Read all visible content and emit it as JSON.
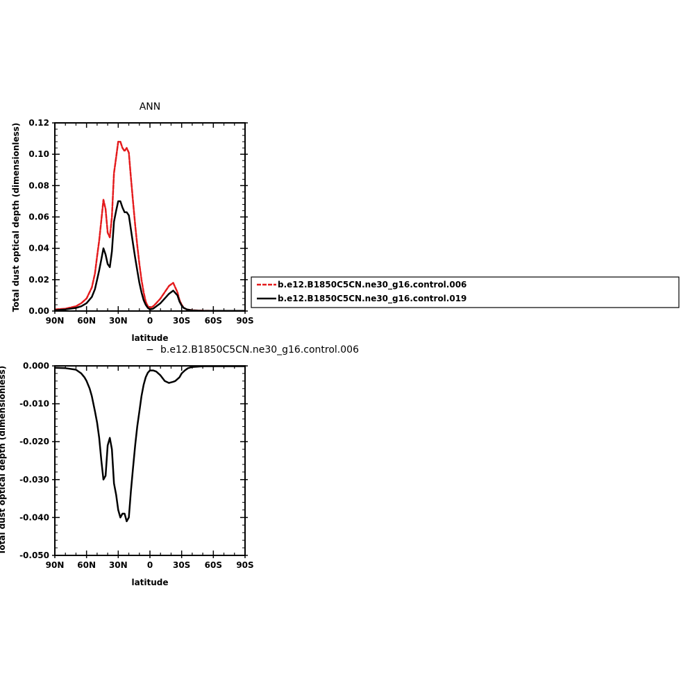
{
  "chart_data": [
    {
      "type": "line",
      "title": "ANN",
      "xlabel": "latitude",
      "ylabel": "Total dust optical depth (dimensionless)",
      "xlim": [
        90,
        -90
      ],
      "ylim": [
        0,
        0.12
      ],
      "x_ticks": [
        90,
        60,
        30,
        0,
        -30,
        -60,
        -90
      ],
      "x_tick_labels": [
        "90N",
        "60N",
        "30N",
        "0",
        "30S",
        "60S",
        "90S"
      ],
      "y_ticks": [
        0,
        0.02,
        0.04,
        0.06,
        0.08,
        0.1,
        0.12
      ],
      "y_tick_labels": [
        "0.00",
        "0.02",
        "0.04",
        "0.06",
        "0.08",
        "0.10",
        "0.12"
      ],
      "grid": false,
      "legend_position": "right",
      "series": [
        {
          "name": "b.e12.B1850C5CN.ne30_g16.control.006",
          "color": "#e41a1c",
          "dashed": true,
          "x": [
            90,
            80,
            70,
            65,
            60,
            55,
            52,
            50,
            48,
            46,
            44,
            42,
            40,
            38,
            36,
            34,
            32,
            30,
            28,
            26,
            24,
            22,
            20,
            18,
            16,
            14,
            12,
            10,
            8,
            6,
            4,
            2,
            0,
            -3,
            -6,
            -10,
            -14,
            -18,
            -22,
            -26,
            -28,
            -30,
            -32,
            -35,
            -40,
            -45,
            -50,
            -60,
            -70,
            -90
          ],
          "y": [
            0.001,
            0.0015,
            0.003,
            0.005,
            0.008,
            0.015,
            0.024,
            0.035,
            0.045,
            0.058,
            0.071,
            0.065,
            0.05,
            0.047,
            0.06,
            0.088,
            0.098,
            0.108,
            0.108,
            0.104,
            0.102,
            0.104,
            0.101,
            0.085,
            0.07,
            0.055,
            0.042,
            0.03,
            0.02,
            0.012,
            0.006,
            0.003,
            0.002,
            0.003,
            0.005,
            0.008,
            0.012,
            0.016,
            0.018,
            0.012,
            0.007,
            0.004,
            0.002,
            0.001,
            0.0005,
            0.0003,
            0.0002,
            0.0001,
            0.0001,
            0.0001
          ]
        },
        {
          "name": "b.e12.B1850C5CN.ne30_g16.control.019",
          "color": "#000000",
          "dashed": false,
          "x": [
            90,
            80,
            70,
            65,
            60,
            55,
            52,
            50,
            48,
            46,
            44,
            42,
            40,
            38,
            36,
            34,
            32,
            30,
            28,
            26,
            24,
            22,
            20,
            18,
            16,
            14,
            12,
            10,
            8,
            6,
            4,
            2,
            0,
            -3,
            -6,
            -10,
            -14,
            -18,
            -22,
            -26,
            -28,
            -30,
            -32,
            -35,
            -40,
            -45,
            -50,
            -60,
            -70,
            -90
          ],
          "y": [
            0.0005,
            0.001,
            0.002,
            0.003,
            0.005,
            0.009,
            0.014,
            0.02,
            0.026,
            0.033,
            0.04,
            0.036,
            0.03,
            0.028,
            0.038,
            0.057,
            0.064,
            0.07,
            0.07,
            0.066,
            0.063,
            0.063,
            0.061,
            0.052,
            0.043,
            0.034,
            0.026,
            0.018,
            0.012,
            0.007,
            0.004,
            0.002,
            0.001,
            0.0015,
            0.003,
            0.005,
            0.008,
            0.011,
            0.013,
            0.01,
            0.006,
            0.0035,
            0.002,
            0.001,
            0.0004,
            0.0002,
            0.0001,
            0.0001,
            0.0001,
            0.0001
          ]
        }
      ]
    },
    {
      "type": "line",
      "title": "b.e12.B1850C5CN.ne30_g16.control.006",
      "title_prefix": "−",
      "xlabel": "latitude",
      "ylabel": "Total dust optical depth (dimensionless)",
      "xlim": [
        90,
        -90
      ],
      "ylim": [
        -0.05,
        0.0
      ],
      "x_ticks": [
        90,
        60,
        30,
        0,
        -30,
        -60,
        -90
      ],
      "x_tick_labels": [
        "90N",
        "60N",
        "30N",
        "0",
        "30S",
        "60S",
        "90S"
      ],
      "y_ticks": [
        0,
        -0.01,
        -0.02,
        -0.03,
        -0.04,
        -0.05
      ],
      "y_tick_labels": [
        "0.000",
        "-0.010",
        "-0.020",
        "-0.030",
        "-0.040",
        "-0.050"
      ],
      "grid": false,
      "series": [
        {
          "color": "#000000",
          "dashed": false,
          "x": [
            90,
            80,
            70,
            65,
            62,
            60,
            57,
            55,
            52,
            50,
            48,
            46,
            44,
            42,
            40,
            38,
            36,
            34,
            32,
            30,
            28,
            26,
            24,
            22,
            20,
            18,
            16,
            14,
            12,
            10,
            8,
            6,
            4,
            2,
            0,
            -3,
            -6,
            -10,
            -14,
            -18,
            -22,
            -24,
            -26,
            -28,
            -30,
            -33,
            -36,
            -40,
            -45,
            -50,
            -60,
            -70,
            -90
          ],
          "y": [
            -0.0005,
            -0.0006,
            -0.001,
            -0.002,
            -0.003,
            -0.004,
            -0.006,
            -0.008,
            -0.012,
            -0.015,
            -0.019,
            -0.025,
            -0.03,
            -0.029,
            -0.021,
            -0.019,
            -0.022,
            -0.031,
            -0.034,
            -0.038,
            -0.04,
            -0.039,
            -0.039,
            -0.041,
            -0.04,
            -0.033,
            -0.027,
            -0.021,
            -0.016,
            -0.012,
            -0.008,
            -0.005,
            -0.003,
            -0.0018,
            -0.0012,
            -0.0012,
            -0.0015,
            -0.0025,
            -0.004,
            -0.0045,
            -0.0042,
            -0.004,
            -0.0035,
            -0.003,
            -0.002,
            -0.0012,
            -0.0006,
            -0.0003,
            -0.0002,
            -0.0001,
            -0.0001,
            -0.0001,
            -0.0001
          ]
        }
      ]
    }
  ]
}
